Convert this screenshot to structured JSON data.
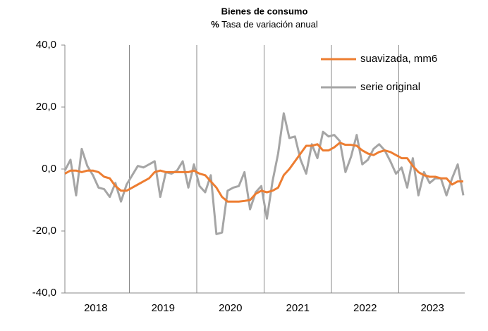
{
  "chart_data": {
    "type": "line",
    "title": "Bienes de consumo",
    "subtitle_prefix": "%",
    "subtitle": "Tasa de variación anual",
    "categories": [
      null,
      null,
      null,
      null,
      null,
      null,
      "2018",
      null,
      null,
      null,
      null,
      null,
      null,
      null,
      null,
      null,
      null,
      null,
      "2019",
      null,
      null,
      null,
      null,
      null,
      null,
      null,
      null,
      null,
      null,
      null,
      "2020",
      null,
      null,
      null,
      null,
      null,
      null,
      null,
      null,
      null,
      null,
      null,
      "2021",
      null,
      null,
      null,
      null,
      null,
      null,
      null,
      null,
      null,
      null,
      null,
      "2022",
      null,
      null,
      null,
      null,
      null,
      null,
      null,
      null,
      null,
      null,
      null,
      "2023",
      null,
      null,
      null,
      null,
      null
    ],
    "series": [
      {
        "name": "suavizada, mm6",
        "color": "#ed7d31",
        "values": [
          -1.5,
          -0.5,
          -0.5,
          -1,
          -0.5,
          -0.5,
          -1,
          -2.5,
          -3,
          -5.5,
          -7,
          -7,
          -6,
          -5,
          -4,
          -3,
          -1,
          -0.5,
          -1,
          -1,
          -1,
          -1,
          -1,
          -0.5,
          -1.5,
          -2,
          -4,
          -6,
          -9,
          -10.5,
          -10.5,
          -10.5,
          -10.3,
          -10,
          -8,
          -7,
          -7.5,
          -7,
          -6,
          -2,
          0,
          2.5,
          5,
          7.5,
          7.5,
          8,
          6,
          6,
          7,
          8.5,
          7.8,
          7.8,
          7.5,
          6,
          5,
          4.5,
          5.5,
          6,
          5.5,
          4.5,
          3.5,
          3.5,
          1,
          -1,
          -2,
          -2.5,
          -2.5,
          -3,
          -3,
          -5,
          -4,
          -4
        ]
      },
      {
        "name": "serie original",
        "color": "#a5a5a5",
        "values": [
          -0.5,
          3,
          -8.5,
          6.5,
          1,
          -2,
          -6,
          -6.5,
          -9,
          -4.5,
          -10.5,
          -5,
          -2,
          1,
          0.5,
          1.5,
          2.5,
          -9,
          -1,
          -1.5,
          -0.5,
          2.5,
          -6,
          1.5,
          -5.5,
          -7.5,
          -2,
          -21,
          -20.5,
          -7,
          -6,
          -5.5,
          -1,
          -13,
          -7.5,
          -5.5,
          -16,
          -4,
          5,
          18,
          10,
          10.5,
          3,
          -1.5,
          8,
          3.5,
          12,
          10.5,
          11,
          9,
          -1,
          4,
          11,
          1.5,
          3,
          6.5,
          8,
          6,
          2.5,
          -1.5,
          0.5,
          -6,
          3.5,
          -8.5,
          -1,
          -4.5,
          -3,
          -3,
          -8.5,
          -3,
          1.5,
          -8.5
        ]
      }
    ],
    "ylim": [
      -40,
      40
    ],
    "yticks": [
      {
        "value": -40,
        "label": "-40,0"
      },
      {
        "value": -20,
        "label": "-20,0"
      },
      {
        "value": 0,
        "label": "0,0"
      },
      {
        "value": 20,
        "label": "20,0"
      },
      {
        "value": 40,
        "label": "40,0"
      }
    ],
    "legend": "upper right"
  }
}
